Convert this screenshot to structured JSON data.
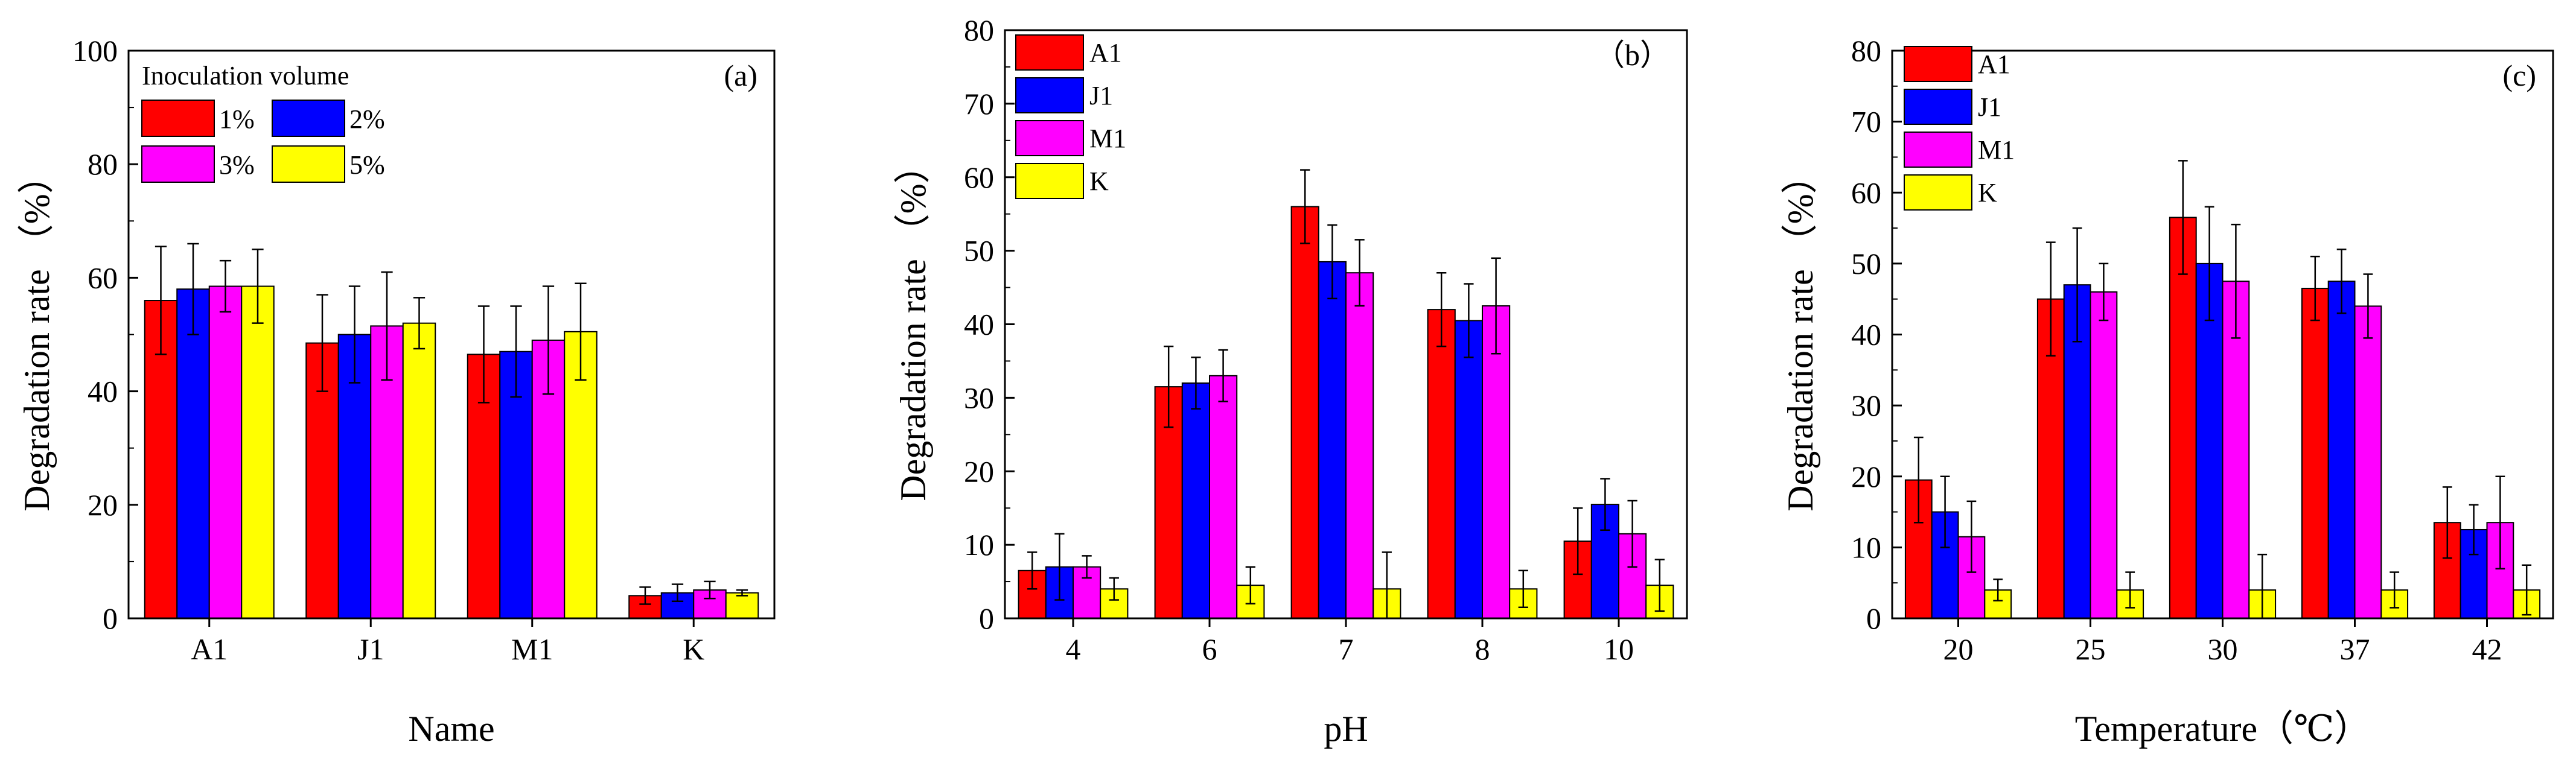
{
  "chart_data": [
    {
      "type": "bar",
      "panel": "(a)",
      "xlabel": "Name",
      "ylabel": "Degradation rate （%）",
      "ylim": [
        0,
        100
      ],
      "yticks": [
        0,
        20,
        40,
        60,
        80,
        100
      ],
      "categories": [
        "A1",
        "J1",
        "M1",
        "K"
      ],
      "legend_title": "Inoculation volume",
      "legend_layout": "grid-2",
      "series": [
        {
          "name": "1%",
          "color": "#ff0000",
          "values": [
            56,
            48.5,
            46.5,
            4
          ],
          "errors": [
            9.5,
            8.5,
            8.5,
            1.5
          ]
        },
        {
          "name": "2%",
          "color": "#0000ff",
          "values": [
            58,
            50,
            47,
            4.5
          ],
          "errors": [
            8,
            8.5,
            8,
            1.5
          ]
        },
        {
          "name": "3%",
          "color": "#ff00ff",
          "values": [
            58.5,
            51.5,
            49,
            5
          ],
          "errors": [
            4.5,
            9.5,
            9.5,
            1.5
          ]
        },
        {
          "name": "5%",
          "color": "#ffff00",
          "values": [
            58.5,
            52,
            50.5,
            4.5
          ],
          "errors": [
            6.5,
            4.5,
            8.5,
            0.5
          ]
        }
      ]
    },
    {
      "type": "bar",
      "panel": "（b）",
      "xlabel": "pH",
      "ylabel": "Degradation rate （%）",
      "ylim": [
        0,
        80
      ],
      "yticks": [
        0,
        10,
        20,
        30,
        40,
        50,
        60,
        70,
        80
      ],
      "categories": [
        "4",
        "6",
        "7",
        "8",
        "10"
      ],
      "legend_layout": "column",
      "series": [
        {
          "name": "A1",
          "color": "#ff0000",
          "values": [
            6.5,
            31.5,
            56,
            42,
            10.5
          ],
          "errors": [
            2.5,
            5.5,
            5,
            5,
            4.5
          ]
        },
        {
          "name": "J1",
          "color": "#0000ff",
          "values": [
            7,
            32,
            48.5,
            40.5,
            15.5
          ],
          "errors": [
            4.5,
            3.5,
            5,
            5,
            3.5
          ]
        },
        {
          "name": "M1",
          "color": "#ff00ff",
          "values": [
            7,
            33,
            47,
            42.5,
            11.5
          ],
          "errors": [
            1.5,
            3.5,
            4.5,
            6.5,
            4.5
          ]
        },
        {
          "name": "K",
          "color": "#ffff00",
          "values": [
            4,
            4.5,
            4,
            4,
            4.5
          ],
          "errors": [
            1.5,
            2.5,
            5,
            2.5,
            3.5
          ]
        }
      ]
    },
    {
      "type": "bar",
      "panel": "(c)",
      "xlabel": "Temperature（℃）",
      "ylabel": "Degradation rate （%）",
      "ylim": [
        0,
        80
      ],
      "yticks": [
        0,
        10,
        20,
        30,
        40,
        50,
        60,
        70,
        80
      ],
      "categories": [
        "20",
        "25",
        "30",
        "37",
        "42"
      ],
      "legend_layout": "column",
      "series": [
        {
          "name": "A1",
          "color": "#ff0000",
          "values": [
            19.5,
            45,
            56.5,
            46.5,
            13.5
          ],
          "errors": [
            6,
            8,
            8,
            4.5,
            5
          ]
        },
        {
          "name": "J1",
          "color": "#0000ff",
          "values": [
            15,
            47,
            50,
            47.5,
            12.5
          ],
          "errors": [
            5,
            8,
            8,
            4.5,
            3.5
          ]
        },
        {
          "name": "M1",
          "color": "#ff00ff",
          "values": [
            11.5,
            46,
            47.5,
            44,
            13.5
          ],
          "errors": [
            5,
            4,
            8,
            4.5,
            6.5
          ]
        },
        {
          "name": "K",
          "color": "#ffff00",
          "values": [
            4,
            4,
            4,
            4,
            4
          ],
          "errors": [
            1.5,
            2.5,
            5,
            2.5,
            3.5
          ]
        }
      ]
    }
  ]
}
